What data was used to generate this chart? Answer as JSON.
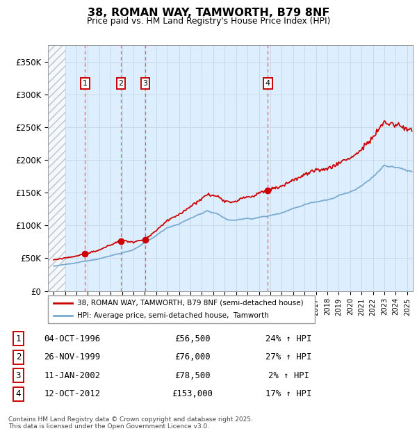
{
  "title": "38, ROMAN WAY, TAMWORTH, B79 8NF",
  "subtitle": "Price paid vs. HM Land Registry's House Price Index (HPI)",
  "legend_line1": "38, ROMAN WAY, TAMWORTH, B79 8NF (semi-detached house)",
  "legend_line2": "HPI: Average price, semi-detached house,  Tamworth",
  "footnote": "Contains HM Land Registry data © Crown copyright and database right 2025.\nThis data is licensed under the Open Government Licence v3.0.",
  "transactions": [
    {
      "num": 1,
      "date": "04-OCT-1996",
      "price": 56500,
      "year": 1996.75,
      "pct": "24%",
      "dir": "↑"
    },
    {
      "num": 2,
      "date": "26-NOV-1999",
      "price": 76000,
      "year": 1999.9,
      "pct": "27%",
      "dir": "↑"
    },
    {
      "num": 3,
      "date": "11-JAN-2002",
      "price": 78500,
      "year": 2002.04,
      "pct": "2%",
      "dir": "↑"
    },
    {
      "num": 4,
      "date": "12-OCT-2012",
      "price": 153000,
      "year": 2012.78,
      "pct": "17%",
      "dir": "↑"
    }
  ],
  "hpi_color": "#7aaad0",
  "price_color": "#cc0000",
  "dashed_line_color": "#ff5555",
  "marker_color": "#cc0000",
  "box_color": "#cc0000",
  "ylim": [
    0,
    375000
  ],
  "yticks": [
    0,
    50000,
    100000,
    150000,
    200000,
    250000,
    300000,
    350000
  ],
  "xlim_start": 1993.5,
  "xlim_end": 2025.5,
  "grid_color": "#c8daea",
  "bg_color": "#ddeeff"
}
